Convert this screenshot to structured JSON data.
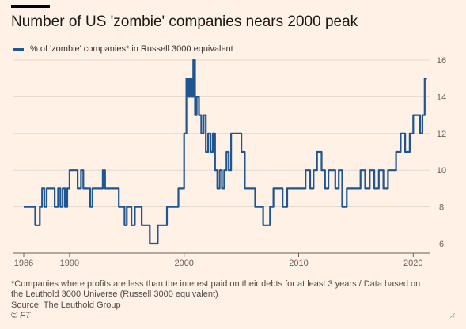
{
  "title": "Number of US 'zombie' companies nears 2000 peak",
  "legend_label": "% of 'zombie' companies* in Russell 3000 equivalent",
  "footnote_line1": "*Companies where profits are less than the interest paid on their debts for at least 3 years / Data based on",
  "footnote_line2": "the Leuthold 3000 Universe (Russell 3000 equivalent)",
  "source": "Source: The Leuthold Group",
  "copyright": "© FT",
  "colors": {
    "background": "#fff1e5",
    "series": "#1f5590",
    "grid": "#e5d7cb",
    "axis": "#66605c"
  },
  "chart_data": {
    "type": "line",
    "title": "Number of US 'zombie' companies nears 2000 peak",
    "xlabel": "",
    "ylabel": "",
    "xlim": [
      1986,
      2021.5
    ],
    "ylim": [
      6,
      16
    ],
    "x_ticks": [
      1986,
      1990,
      2000,
      2010,
      2020
    ],
    "y_ticks": [
      6,
      8,
      10,
      12,
      14,
      16
    ],
    "y_axis_side": "right",
    "grid": true,
    "legend": "top-left",
    "series": [
      {
        "name": "% of 'zombie' companies* in Russell 3000 equivalent",
        "color": "#1f5590",
        "x": [
          1986.0,
          1986.5,
          1987.0,
          1987.4,
          1987.6,
          1987.8,
          1988.0,
          1988.3,
          1988.7,
          1989.0,
          1989.2,
          1989.4,
          1989.6,
          1989.8,
          1990.0,
          1990.4,
          1990.7,
          1991.0,
          1991.2,
          1991.5,
          1991.8,
          1992.0,
          1992.3,
          1992.6,
          1992.9,
          1993.1,
          1993.4,
          1993.6,
          1993.8,
          1994.0,
          1994.3,
          1994.5,
          1994.8,
          1995.0,
          1995.4,
          1995.7,
          1996.0,
          1996.3,
          1996.6,
          1996.8,
          1997.0,
          1997.3,
          1997.5,
          1997.7,
          1997.9,
          1998.2,
          1998.5,
          1998.9,
          1999.2,
          1999.5,
          1999.8,
          2000.0,
          2000.2,
          2000.35,
          2000.5,
          2000.65,
          2000.8,
          2000.95,
          2001.1,
          2001.3,
          2001.5,
          2001.7,
          2001.9,
          2002.1,
          2002.3,
          2002.5,
          2002.7,
          2002.9,
          2003.1,
          2003.3,
          2003.5,
          2003.7,
          2003.9,
          2004.1,
          2004.3,
          2004.6,
          2005.0,
          2005.3,
          2005.6,
          2005.9,
          2006.2,
          2006.6,
          2006.9,
          2007.2,
          2007.5,
          2007.8,
          2008.2,
          2008.6,
          2009.0,
          2009.4,
          2009.8,
          2010.2,
          2010.6,
          2011.0,
          2011.3,
          2011.6,
          2012.0,
          2012.3,
          2012.6,
          2012.9,
          2013.2,
          2013.5,
          2013.8,
          2014.2,
          2014.6,
          2015.0,
          2015.4,
          2015.8,
          2016.2,
          2016.6,
          2017.0,
          2017.4,
          2017.8,
          2018.0,
          2018.2,
          2018.5,
          2018.9,
          2019.3,
          2019.7,
          2020.0,
          2020.3,
          2020.6,
          2020.8,
          2021.0,
          2021.2
        ],
        "values": [
          8,
          8,
          7,
          8,
          9,
          8,
          9,
          9,
          8,
          9,
          8,
          9,
          8,
          9,
          10,
          10,
          9,
          10,
          9,
          9,
          8,
          9,
          9,
          9,
          10,
          9,
          9,
          9,
          9,
          9,
          8,
          8,
          7,
          8,
          7,
          8,
          8,
          7,
          7,
          7,
          6,
          6,
          6,
          7,
          7,
          7,
          8,
          8,
          8,
          9,
          9,
          12,
          15,
          14,
          15,
          14,
          16,
          13,
          14,
          13,
          12,
          13,
          11,
          12,
          11,
          12,
          10,
          9,
          10,
          9,
          10,
          11,
          10,
          12,
          12,
          12,
          11,
          9,
          9,
          9,
          8,
          8,
          7,
          7,
          8,
          9,
          9,
          8,
          9,
          9,
          9,
          9,
          10,
          9,
          10,
          11,
          10,
          9,
          10,
          10,
          9,
          10,
          8,
          9,
          9,
          9,
          10,
          9,
          10,
          9,
          10,
          9,
          10,
          10,
          10,
          11,
          12,
          11,
          12,
          13,
          13,
          12,
          13,
          15,
          15
        ]
      }
    ]
  }
}
